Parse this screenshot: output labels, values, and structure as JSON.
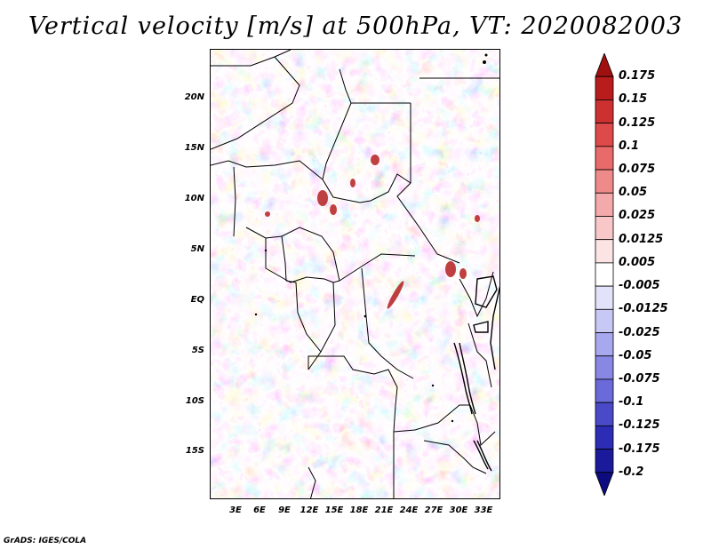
{
  "title": "Vertical velocity [m/s] at 500hPa, VT: 2020082003",
  "credit": "GrADS: IGES/COLA",
  "map": {
    "lat_labels": [
      "20N",
      "15N",
      "10N",
      "5N",
      "EQ",
      "5S",
      "10S",
      "15S"
    ],
    "lon_labels": [
      "3E",
      "6E",
      "9E",
      "12E",
      "15E",
      "18E",
      "21E",
      "24E",
      "27E",
      "30E",
      "33E"
    ]
  },
  "colorbar": {
    "labels": [
      "0.175",
      "0.15",
      "0.125",
      "0.1",
      "0.075",
      "0.05",
      "0.025",
      "0.0125",
      "0.005",
      "-0.005",
      "-0.0125",
      "-0.025",
      "-0.05",
      "-0.075",
      "-0.1",
      "-0.125",
      "-0.175",
      "-0.2"
    ],
    "colors": [
      "#a01010",
      "#b81c1c",
      "#cc3030",
      "#de4a4a",
      "#e86a6a",
      "#ef8a8a",
      "#f4aaaa",
      "#f8c8c8",
      "#fce4e4",
      "#ffffff",
      "#e2e2fb",
      "#c8c8f4",
      "#a8a8ee",
      "#8888e4",
      "#6a6ad8",
      "#4a4ac8",
      "#2c2cb4",
      "#1a1a9a",
      "#0c0c80"
    ]
  }
}
